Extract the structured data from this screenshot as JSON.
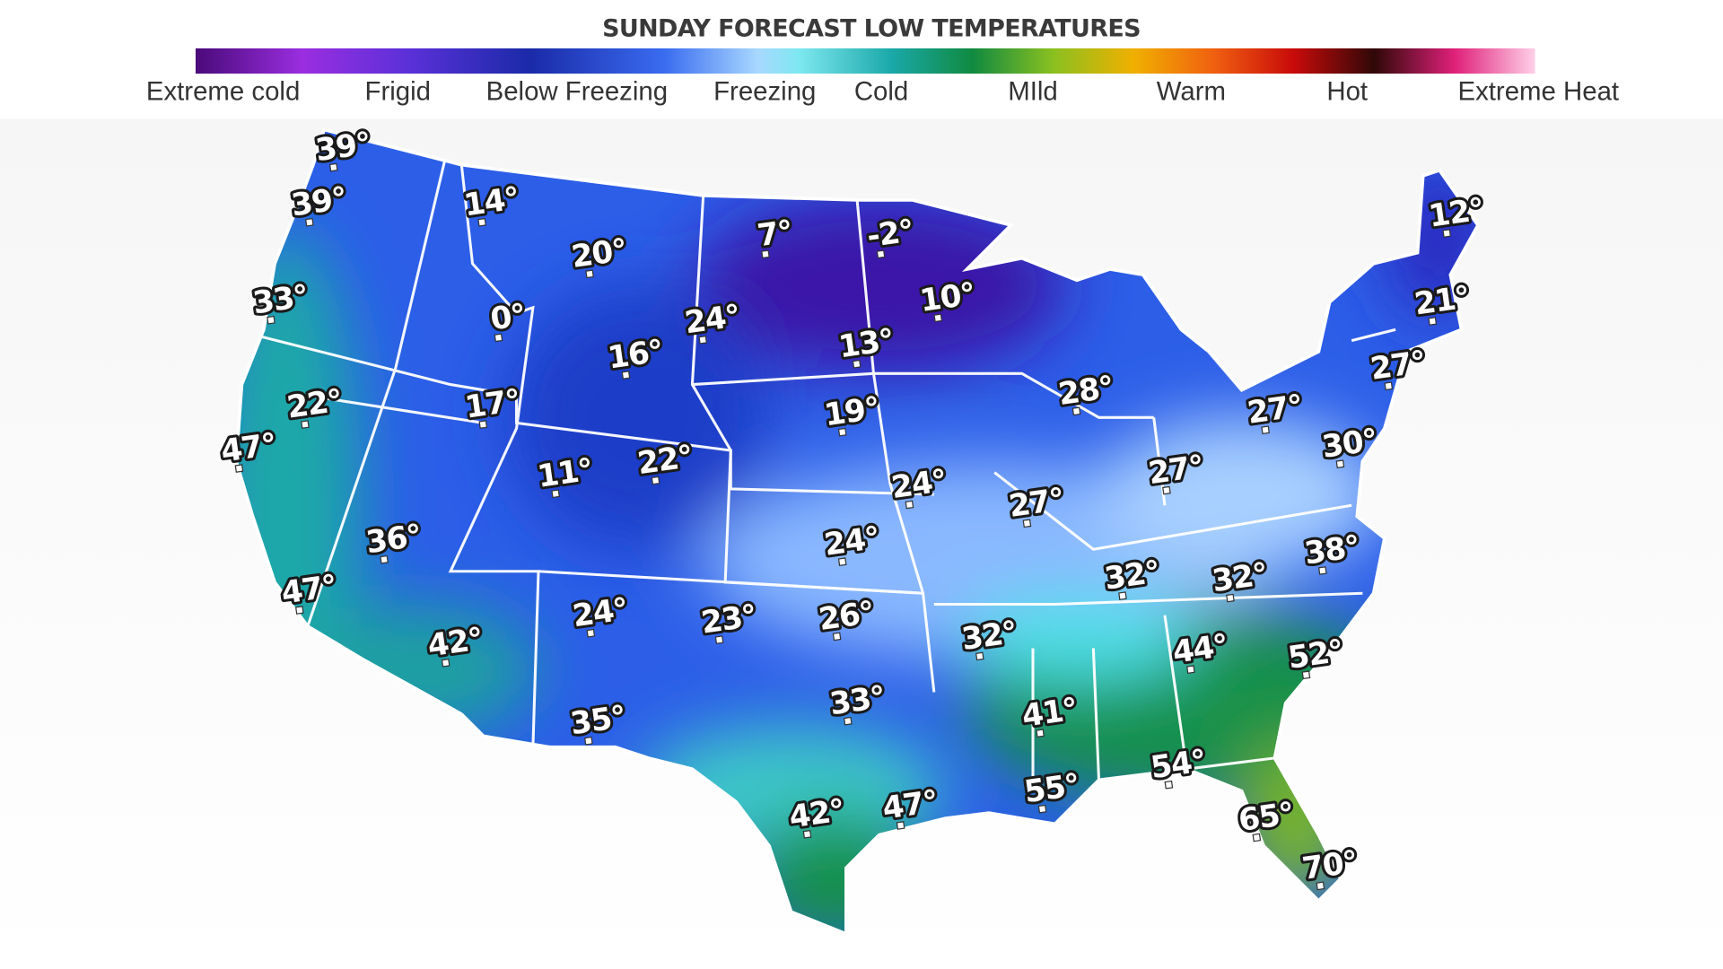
{
  "header": {
    "title": "SUNDAY  FORECAST LOW TEMPERATURES",
    "legend": [
      "Extreme cold",
      "Frigid",
      "Below Freezing",
      "Freezing",
      "Cold",
      "MIld",
      "Warm",
      "Hot",
      "Extreme Heat"
    ]
  },
  "map": {
    "labels": [
      "39°",
      "39°",
      "14°",
      "20°",
      "7°",
      "-2°",
      "12°",
      "33°",
      "0°",
      "24°",
      "10°",
      "21°",
      "16°",
      "13°",
      "28°",
      "27°",
      "22°",
      "17°",
      "19°",
      "27°",
      "47°",
      "30°",
      "11°",
      "22°",
      "24°",
      "27°",
      "27°",
      "36°",
      "24°",
      "38°",
      "47°",
      "32°",
      "32°",
      "24°",
      "23°",
      "26°",
      "32°",
      "44°",
      "52°",
      "42°",
      "33°",
      "41°",
      "35°",
      "54°",
      "55°",
      "42°",
      "47°",
      "65°",
      "70°"
    ]
  }
}
